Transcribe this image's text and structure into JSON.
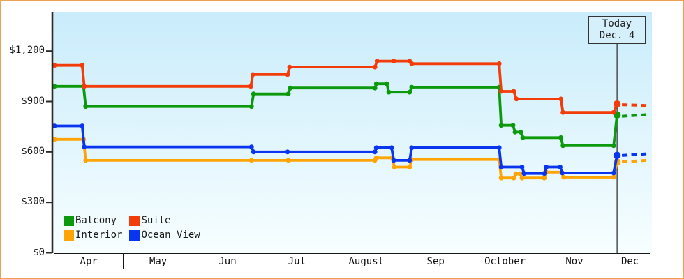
{
  "chart_data": {
    "type": "line",
    "x_axis": {
      "months": [
        "Apr",
        "May",
        "Jun",
        "Jul",
        "August",
        "Sep",
        "October",
        "Nov",
        "Dec"
      ]
    },
    "y_axis": {
      "ticks": [
        {
          "label": "$1,200",
          "value": 1200
        },
        {
          "label": "$900",
          "value": 900
        },
        {
          "label": "$600",
          "value": 600
        },
        {
          "label": "$300",
          "value": 300
        },
        {
          "label": "$0",
          "value": 0
        }
      ],
      "range": [
        0,
        1430
      ]
    },
    "today": {
      "label": "Today",
      "date": "Dec. 4",
      "month_pos": 8.11
    },
    "series": [
      {
        "name": "Interior",
        "color": "#ffa405",
        "points": [
          [
            0,
            675
          ],
          [
            0.42,
            675
          ],
          [
            0.45,
            550
          ],
          [
            2.84,
            550
          ],
          [
            3.37,
            550
          ],
          [
            4.62,
            550
          ],
          [
            4.64,
            565
          ],
          [
            4.87,
            565
          ],
          [
            4.9,
            510
          ],
          [
            5.12,
            510
          ],
          [
            5.15,
            555
          ],
          [
            6.41,
            555
          ],
          [
            6.44,
            445
          ],
          [
            6.62,
            445
          ],
          [
            6.65,
            470
          ],
          [
            6.71,
            470
          ],
          [
            6.74,
            445
          ],
          [
            7.06,
            445
          ],
          [
            7.09,
            480
          ],
          [
            7.31,
            480
          ],
          [
            7.34,
            450
          ],
          [
            8.06,
            450
          ]
        ],
        "today_value": 540,
        "projection": [
          [
            8.18,
            541
          ],
          [
            8.55,
            551
          ]
        ]
      },
      {
        "name": "Ocean View",
        "color": "#0a35f0",
        "points": [
          [
            0,
            755
          ],
          [
            0.4,
            755
          ],
          [
            0.43,
            630
          ],
          [
            2.84,
            630
          ],
          [
            2.87,
            600
          ],
          [
            3.36,
            600
          ],
          [
            4.62,
            600
          ],
          [
            4.64,
            625
          ],
          [
            4.86,
            625
          ],
          [
            4.89,
            550
          ],
          [
            5.12,
            550
          ],
          [
            5.15,
            625
          ],
          [
            6.41,
            625
          ],
          [
            6.44,
            510
          ],
          [
            6.74,
            510
          ],
          [
            6.77,
            472
          ],
          [
            7.06,
            472
          ],
          [
            7.09,
            510
          ],
          [
            7.29,
            510
          ],
          [
            7.32,
            475
          ],
          [
            8.06,
            475
          ]
        ],
        "today_value": 580,
        "projection": [
          [
            8.18,
            579
          ],
          [
            8.55,
            589
          ]
        ]
      },
      {
        "name": "Balcony",
        "color": "#0c9a0c",
        "points": [
          [
            0,
            990
          ],
          [
            0.42,
            990
          ],
          [
            0.45,
            870
          ],
          [
            2.84,
            870
          ],
          [
            2.87,
            945
          ],
          [
            3.37,
            945
          ],
          [
            3.4,
            980
          ],
          [
            4.62,
            980
          ],
          [
            4.64,
            1005
          ],
          [
            4.79,
            1005
          ],
          [
            4.82,
            955
          ],
          [
            5.12,
            955
          ],
          [
            5.15,
            985
          ],
          [
            6.41,
            985
          ],
          [
            6.44,
            758
          ],
          [
            6.61,
            758
          ],
          [
            6.64,
            718
          ],
          [
            6.72,
            718
          ],
          [
            6.75,
            685
          ],
          [
            7.3,
            685
          ],
          [
            7.33,
            637
          ],
          [
            8.06,
            637
          ]
        ],
        "today_value": 820,
        "projection": [
          [
            8.18,
            812
          ],
          [
            8.55,
            822
          ]
        ]
      },
      {
        "name": "Suite",
        "color": "#f23d0a",
        "points": [
          [
            0,
            1115
          ],
          [
            0.4,
            1115
          ],
          [
            0.43,
            990
          ],
          [
            2.83,
            990
          ],
          [
            2.86,
            1060
          ],
          [
            3.36,
            1060
          ],
          [
            3.39,
            1105
          ],
          [
            4.62,
            1105
          ],
          [
            4.65,
            1140
          ],
          [
            4.89,
            1140
          ],
          [
            5.12,
            1140
          ],
          [
            5.15,
            1125
          ],
          [
            6.41,
            1125
          ],
          [
            6.44,
            960
          ],
          [
            6.62,
            960
          ],
          [
            6.66,
            915
          ],
          [
            7.3,
            915
          ],
          [
            7.33,
            835
          ],
          [
            8.06,
            835
          ]
        ],
        "today_value": 885,
        "projection": [
          [
            8.18,
            881
          ],
          [
            8.55,
            876
          ]
        ]
      }
    ],
    "legend": {
      "rows": [
        [
          "Balcony",
          "Suite"
        ],
        [
          "Interior",
          "Ocean View"
        ]
      ]
    }
  }
}
